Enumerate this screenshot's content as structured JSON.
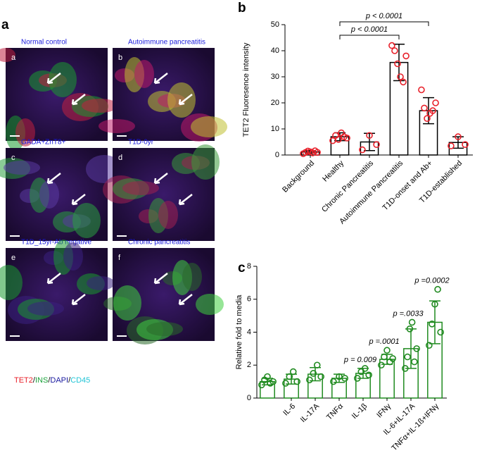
{
  "panel_letters": [
    "a",
    "b",
    "c"
  ],
  "panel_a": {
    "images": [
      {
        "letter": "a",
        "label": "Normal control"
      },
      {
        "letter": "b",
        "label": "Autoimmune pancreatitis"
      },
      {
        "letter": "c",
        "label": "GADA+ZnT8+"
      },
      {
        "letter": "d",
        "label": "T1D-0yr"
      },
      {
        "letter": "e",
        "label": "T1D_15yr-Ab negative"
      },
      {
        "letter": "f",
        "label": "Chronic pancreatitis"
      }
    ],
    "legend": [
      {
        "text": "TET2",
        "color": "#e8202a"
      },
      {
        "text": "/",
        "color": "#000000"
      },
      {
        "text": "INS",
        "color": "#1aa23a"
      },
      {
        "text": "/",
        "color": "#000000"
      },
      {
        "text": "DAPI",
        "color": "#1a1aa0"
      },
      {
        "text": "/",
        "color": "#000000"
      },
      {
        "text": "CD45",
        "color": "#21c4d6"
      }
    ]
  },
  "chart_data": [
    {
      "type": "bar",
      "ylabel": "TET2 Fluoresence intensity",
      "categories": [
        "Background",
        "Healthy",
        "Chronic Pancreatitis",
        "Autoimmune Pancreatitis",
        "T1D-onset and Ab+",
        "T1D-established"
      ],
      "values": [
        1.2,
        7,
        5,
        35.5,
        17,
        4.8
      ],
      "errors": [
        0.5,
        1.5,
        3.3,
        7,
        5,
        2.2
      ],
      "points": [
        [
          0.5,
          1,
          1.5,
          1.2,
          0.8,
          1.6,
          1
        ],
        [
          5.5,
          7.5,
          6,
          8.5,
          7,
          6.5
        ],
        [
          2,
          7.5,
          4
        ],
        [
          42,
          40,
          35,
          30,
          28,
          38
        ],
        [
          25,
          18,
          14,
          16,
          17,
          20
        ],
        [
          3.5,
          7,
          4
        ]
      ],
      "color": "#000000",
      "point_color": "#e8202a",
      "ylim": [
        0,
        50
      ],
      "yticks": [
        0,
        10,
        20,
        30,
        40,
        50
      ],
      "annotations": [
        {
          "label": "p < 0.0001",
          "from": "Healthy",
          "to": "T1D-onset and Ab+"
        },
        {
          "label": "p < 0.0001",
          "from": "Healthy",
          "to": "Autoimmune Pancreatitis"
        }
      ]
    },
    {
      "type": "bar",
      "ylabel": "Relative fold to media",
      "categories": [
        null,
        "IL-6",
        "IL-17A",
        "TNFα",
        "IL-1β",
        "IFNγ",
        "IL-6+IL-17A",
        "TNFα+IL-1ß+IFNγ"
      ],
      "values": [
        1.0,
        1.15,
        1.45,
        1.2,
        1.5,
        2.35,
        3.0,
        4.6
      ],
      "errors": [
        0.2,
        0.3,
        0.4,
        0.25,
        0.3,
        0.3,
        1.2,
        1.3
      ],
      "points": [
        [
          0.8,
          1.1,
          1.3,
          0.9,
          1
        ],
        [
          0.9,
          1.3,
          1.6,
          1
        ],
        [
          1.1,
          1.5,
          2,
          1.3
        ],
        [
          1,
          1.3,
          1.2
        ],
        [
          1.2,
          1.6,
          1.8,
          1.4
        ],
        [
          2,
          2.5,
          2.9,
          2.2,
          2.4
        ],
        [
          1.8,
          2.5,
          4.2,
          4.6,
          2.2,
          3
        ],
        [
          3.2,
          4.5,
          5.7,
          6.6,
          4
        ]
      ],
      "color": "#1f8a1f",
      "point_color": "#1f8a1f",
      "ylim": [
        0,
        8
      ],
      "yticks": [
        0,
        2,
        4,
        6,
        8
      ],
      "annotations": [
        {
          "label": "p = 0.009",
          "category": "IL-1β"
        },
        {
          "label": "p =.0001",
          "category": "IFNγ"
        },
        {
          "label": "p =.0033",
          "category": "IL-6+IL-17A"
        },
        {
          "label": "p =0.0002",
          "category": "TNFα+IL-1ß+IFNγ"
        }
      ]
    }
  ]
}
